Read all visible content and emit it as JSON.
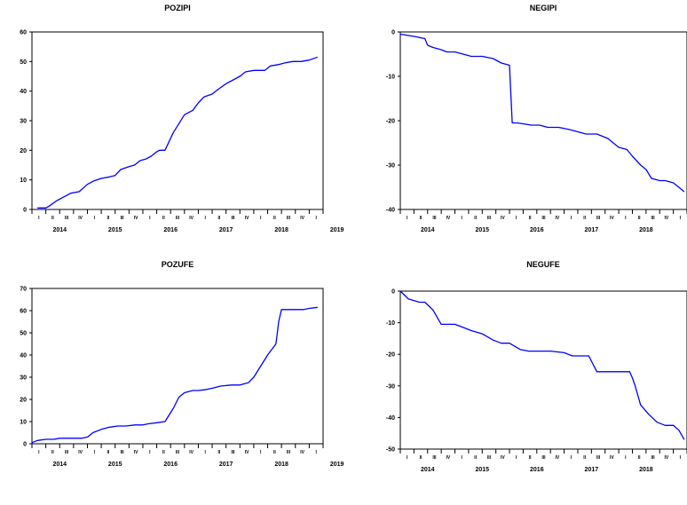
{
  "chart_data": [
    {
      "type": "line",
      "title": "POZIPI",
      "ylim": [
        0,
        60
      ],
      "yticks": [
        0,
        10,
        20,
        30,
        40,
        50,
        60
      ],
      "years": [
        "2014",
        "2015",
        "2016",
        "2017",
        "2018",
        "2019"
      ],
      "quarters": [
        "I",
        "II",
        "III",
        "IV"
      ],
      "x_start": 2014.0,
      "x_end": 2019.25,
      "grid": false,
      "series": [
        {
          "color": "#0000ff",
          "x": [
            2014.1,
            2014.25,
            2014.3,
            2014.45,
            2014.55,
            2014.7,
            2014.85,
            2015.0,
            2015.1,
            2015.25,
            2015.4,
            2015.5,
            2015.6,
            2015.75,
            2015.85,
            2015.95,
            2016.05,
            2016.15,
            2016.25,
            2016.3,
            2016.4,
            2016.55,
            2016.65,
            2016.75,
            2016.9,
            2017.0,
            2017.1,
            2017.25,
            2017.35,
            2017.5,
            2017.6,
            2017.75,
            2017.85,
            2018.0,
            2018.1,
            2018.2,
            2018.3,
            2018.45,
            2018.55,
            2018.7,
            2018.85,
            2019.0,
            2019.15
          ],
          "y": [
            0.5,
            0.5,
            1,
            3,
            4,
            5.5,
            6,
            8.5,
            9.5,
            10.5,
            11,
            11.5,
            13.5,
            14.5,
            15,
            16.5,
            17,
            18,
            19.5,
            20,
            20,
            26,
            29,
            32,
            33.5,
            36,
            38,
            39,
            40.5,
            42.5,
            43.5,
            45,
            46.5,
            47,
            47,
            47,
            48.5,
            49,
            49.5,
            50,
            50,
            50.5,
            51.5
          ]
        }
      ]
    },
    {
      "type": "line",
      "title": "NEGIPI",
      "ylim": [
        -40,
        0
      ],
      "yticks": [
        -40,
        -30,
        -20,
        -10,
        0
      ],
      "years": [
        "2014",
        "2015",
        "2016",
        "2017",
        "2018",
        "2019"
      ],
      "quarters": [
        "I",
        "II",
        "III",
        "IV"
      ],
      "x_start": 2014.0,
      "x_end": 2019.25,
      "grid": false,
      "series": [
        {
          "color": "#0000ff",
          "x": [
            2014.0,
            2014.25,
            2014.45,
            2014.5,
            2014.6,
            2014.75,
            2014.85,
            2015.0,
            2015.15,
            2015.3,
            2015.5,
            2015.7,
            2015.85,
            2016.0,
            2016.05,
            2016.15,
            2016.4,
            2016.55,
            2016.7,
            2016.9,
            2017.1,
            2017.25,
            2017.4,
            2017.6,
            2017.8,
            2017.9,
            2018.0,
            2018.15,
            2018.25,
            2018.4,
            2018.5,
            2018.6,
            2018.75,
            2018.85,
            2019.0,
            2019.1,
            2019.2
          ],
          "y": [
            -0.5,
            -1,
            -1.5,
            -3,
            -3.5,
            -4,
            -4.5,
            -4.5,
            -5,
            -5.5,
            -5.5,
            -6,
            -7,
            -7.5,
            -20.5,
            -20.5,
            -21,
            -21,
            -21.5,
            -21.5,
            -22,
            -22.5,
            -23,
            -23,
            -24,
            -25,
            -26,
            -26.5,
            -28,
            -30,
            -31,
            -33,
            -33.5,
            -33.5,
            -34,
            -35,
            -36
          ]
        }
      ]
    },
    {
      "type": "line",
      "title": "POZUFE",
      "ylim": [
        0,
        70
      ],
      "yticks": [
        0,
        10,
        20,
        30,
        40,
        50,
        60,
        70
      ],
      "years": [
        "2014",
        "2015",
        "2016",
        "2017",
        "2018",
        "2019"
      ],
      "quarters": [
        "I",
        "II",
        "III",
        "IV"
      ],
      "x_start": 2014.0,
      "x_end": 2019.25,
      "grid": false,
      "series": [
        {
          "color": "#0000ff",
          "x": [
            2014.0,
            2014.1,
            2014.25,
            2014.4,
            2014.5,
            2014.6,
            2014.75,
            2014.9,
            2015.0,
            2015.1,
            2015.25,
            2015.4,
            2015.55,
            2015.7,
            2015.85,
            2016.0,
            2016.1,
            2016.25,
            2016.4,
            2016.55,
            2016.65,
            2016.75,
            2016.9,
            2017.0,
            2017.15,
            2017.25,
            2017.4,
            2017.6,
            2017.75,
            2017.9,
            2018.0,
            2018.15,
            2018.25,
            2018.4,
            2018.45,
            2018.5,
            2018.7,
            2018.9,
            2019.0,
            2019.15
          ],
          "y": [
            0.5,
            1.5,
            2,
            2,
            2.5,
            2.5,
            2.5,
            2.5,
            3,
            5,
            6.5,
            7.5,
            8,
            8,
            8.5,
            8.5,
            9,
            9.5,
            10,
            16,
            21,
            23,
            24,
            24,
            24.5,
            25,
            26,
            26.5,
            26.5,
            27.5,
            30,
            36,
            40,
            45,
            55,
            60.5,
            60.5,
            60.5,
            61,
            61.5
          ]
        }
      ]
    },
    {
      "type": "line",
      "title": "NEGUFE",
      "ylim": [
        -50,
        0
      ],
      "yticks": [
        -50,
        -40,
        -30,
        -20,
        -10,
        0
      ],
      "years": [
        "2014",
        "2015",
        "2016",
        "2017",
        "2018",
        "2019"
      ],
      "quarters": [
        "I",
        "II",
        "III",
        "IV"
      ],
      "x_start": 2014.0,
      "x_end": 2019.25,
      "grid": false,
      "series": [
        {
          "color": "#0000ff",
          "x": [
            2014.0,
            2014.15,
            2014.35,
            2014.45,
            2014.6,
            2014.75,
            2015.0,
            2015.15,
            2015.3,
            2015.5,
            2015.7,
            2015.85,
            2016.0,
            2016.2,
            2016.35,
            2016.55,
            2016.75,
            2017.0,
            2017.15,
            2017.35,
            2017.45,
            2017.6,
            2017.75,
            2018.0,
            2018.2,
            2018.25,
            2018.3,
            2018.4,
            2018.55,
            2018.7,
            2018.85,
            2019.0,
            2019.1,
            2019.2
          ],
          "y": [
            0,
            -2.5,
            -3.5,
            -3.5,
            -6,
            -10.5,
            -10.5,
            -11.5,
            -12.5,
            -13.5,
            -15.5,
            -16.5,
            -16.5,
            -18.5,
            -19,
            -19,
            -19,
            -19.5,
            -20.5,
            -20.5,
            -20.5,
            -25.5,
            -25.5,
            -25.5,
            -25.5,
            -27.5,
            -30,
            -36,
            -39,
            -41.5,
            -42.5,
            -42.5,
            -44,
            -47
          ]
        }
      ]
    }
  ]
}
